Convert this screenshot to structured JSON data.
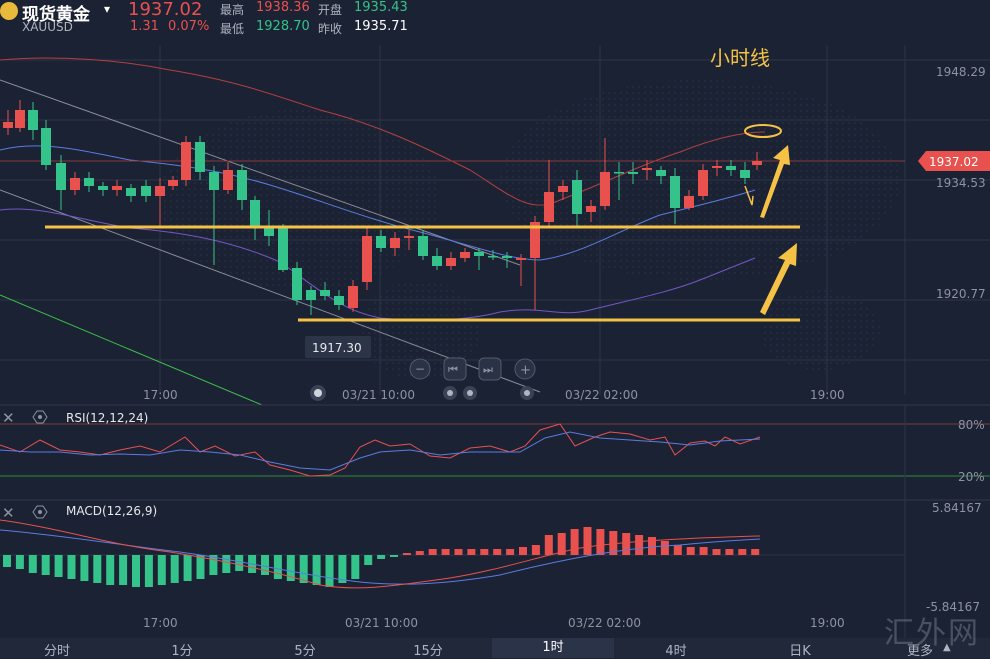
{
  "header": {
    "title": "现货黄金",
    "symbol": "XAUUSD",
    "price": "1937.02",
    "change": "1.31",
    "change_pct": "0.07%",
    "high_label": "最高",
    "high": "1938.36",
    "low_label": "最低",
    "low": "1928.70",
    "open_label": "开盘",
    "open": "1935.43",
    "prev_close_label": "昨收",
    "prev_close": "1935.71"
  },
  "main_chart": {
    "annotation": "小时线",
    "price_axis": [
      "1948.29",
      "1934.53",
      "1920.77"
    ],
    "current_price_tag": "1937.02",
    "low_marker": "1917.30",
    "time_labels": [
      "17:00",
      "03/21 10:00",
      "03/22 02:00",
      "19:00"
    ],
    "nav_buttons": [
      "−",
      "⏮",
      "⏭",
      "+"
    ]
  },
  "rsi": {
    "label": "RSI(12,12,24)",
    "levels": [
      "80%",
      "20%"
    ]
  },
  "macd": {
    "label": "MACD(12,26,9)",
    "levels": [
      "5.84167",
      "-5.84167"
    ],
    "time_labels": [
      "17:00",
      "03/21 10:00",
      "03/22 02:00",
      "19:00"
    ]
  },
  "tabs": [
    "分时",
    "1分",
    "5分",
    "15分",
    "1时",
    "4时",
    "日K",
    "更多"
  ],
  "active_tab": "1时",
  "watermark": "汇外网",
  "colors": {
    "up": "#e9514f",
    "down": "#34c38a",
    "accent": "#f5c246",
    "background": "#1b2233"
  },
  "icons": [
    "close-icon",
    "settings-icon",
    "caret-down-icon"
  ]
}
